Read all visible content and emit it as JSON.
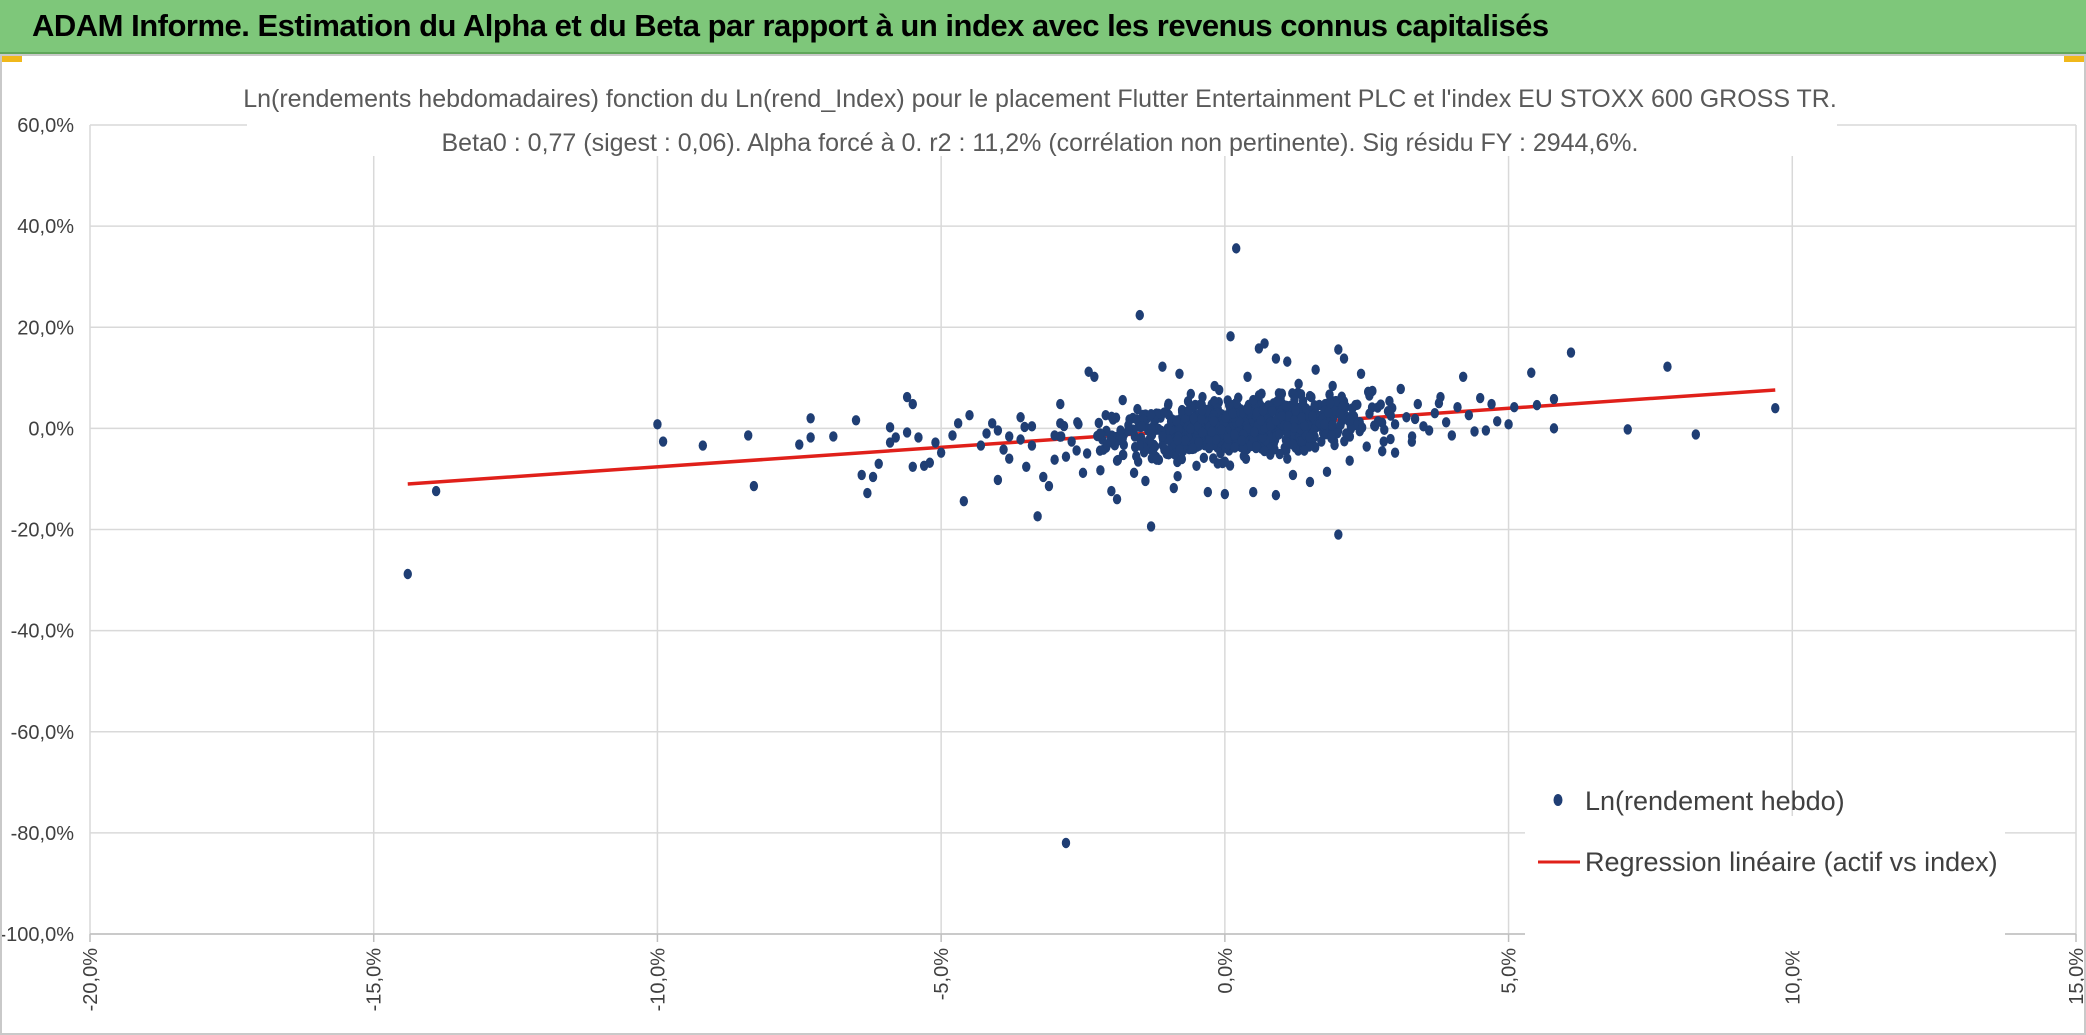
{
  "header": {
    "title": "ADAM Informe. Estimation du Alpha et du Beta par rapport à un index avec les revenus connus capitalisés",
    "background": "#7ec77a",
    "corner_color": "#f0b81b"
  },
  "chart_data": {
    "type": "scatter",
    "title": "Ln(rendements hebdomadaires) fonction du Ln(rend_Index) pour le placement Flutter Entertainment PLC et l'index EU STOXX 600 GROSS TR.",
    "subtitle": "Beta0 : 0,77 (sigest : 0,06). Alpha forcé à 0. r2 : 11,2% (corrélation non pertinente). Sig résidu FY : 2944,6%.",
    "xlabel": "",
    "ylabel": "",
    "xlim": [
      -20,
      15
    ],
    "ylim": [
      -100,
      60
    ],
    "x_ticks": [
      "-20,0%",
      "-15,0%",
      "-10,0%",
      "-5,0%",
      "0,0%",
      "5,0%",
      "10,0%",
      "15,0%"
    ],
    "y_ticks": [
      "60,0%",
      "40,0%",
      "20,0%",
      "0,0%",
      "-20,0%",
      "-40,0%",
      "-60,0%",
      "-80,0%",
      "-100,0%"
    ],
    "grid": true,
    "legend_position": "bottom-right",
    "series": [
      {
        "name": "Ln(rendement hebdo)",
        "kind": "scatter",
        "color": "#1f3e74",
        "points": [
          [
            -14.4,
            -28.8
          ],
          [
            -13.9,
            -12.4
          ],
          [
            -10.0,
            0.8
          ],
          [
            -9.9,
            -2.6
          ],
          [
            -9.2,
            -3.4
          ],
          [
            -8.4,
            -1.4
          ],
          [
            -8.3,
            -11.4
          ],
          [
            -7.5,
            -3.2
          ],
          [
            -7.3,
            2.0
          ],
          [
            -7.3,
            -1.8
          ],
          [
            -6.9,
            -1.6
          ],
          [
            -6.5,
            1.6
          ],
          [
            -6.4,
            -9.2
          ],
          [
            -6.3,
            -12.8
          ],
          [
            -6.2,
            -9.6
          ],
          [
            -6.1,
            -7.0
          ],
          [
            -5.9,
            0.2
          ],
          [
            -5.9,
            -2.8
          ],
          [
            -5.8,
            -1.8
          ],
          [
            -5.6,
            -0.8
          ],
          [
            -5.6,
            6.2
          ],
          [
            -5.5,
            4.8
          ],
          [
            -5.5,
            -7.6
          ],
          [
            -5.4,
            -1.8
          ],
          [
            -5.3,
            -7.4
          ],
          [
            -5.2,
            -6.8
          ],
          [
            -5.1,
            -2.8
          ],
          [
            -5.0,
            -4.8
          ],
          [
            -4.8,
            -1.4
          ],
          [
            -4.7,
            1.0
          ],
          [
            -4.6,
            -14.4
          ],
          [
            -4.5,
            2.6
          ],
          [
            -4.3,
            -3.4
          ],
          [
            -4.2,
            -1.0
          ],
          [
            -4.1,
            1.0
          ],
          [
            -4.0,
            -0.4
          ],
          [
            -4.0,
            -10.2
          ],
          [
            -3.9,
            -4.2
          ],
          [
            -3.8,
            -6.0
          ],
          [
            -3.8,
            -1.6
          ],
          [
            -3.6,
            -2.2
          ],
          [
            -3.6,
            2.2
          ],
          [
            -3.5,
            -7.6
          ],
          [
            -3.4,
            -3.4
          ],
          [
            -3.4,
            0.4
          ],
          [
            -3.3,
            -17.4
          ],
          [
            -3.2,
            -9.6
          ],
          [
            -3.1,
            -11.4
          ],
          [
            -3.0,
            -6.2
          ],
          [
            -3.0,
            -1.4
          ],
          [
            -2.9,
            4.8
          ],
          [
            -2.9,
            1.0
          ],
          [
            -2.8,
            -82.0
          ],
          [
            -2.8,
            -5.6
          ],
          [
            -2.7,
            -2.6
          ],
          [
            -2.6,
            1.2
          ],
          [
            -2.5,
            -8.8
          ],
          [
            -2.4,
            11.2
          ],
          [
            -2.3,
            10.2
          ],
          [
            -2.2,
            -4.4
          ],
          [
            -2.2,
            -1.0
          ],
          [
            -2.1,
            2.6
          ],
          [
            -2.0,
            -12.4
          ],
          [
            -1.9,
            -14.0
          ],
          [
            -1.9,
            -6.4
          ],
          [
            -1.8,
            5.6
          ],
          [
            -1.8,
            -2.0
          ],
          [
            -1.7,
            0.6
          ],
          [
            -1.6,
            -8.8
          ],
          [
            -1.5,
            -3.4
          ],
          [
            -1.5,
            22.4
          ],
          [
            -1.4,
            -10.4
          ],
          [
            -1.3,
            -19.4
          ],
          [
            -1.3,
            2.8
          ],
          [
            -1.2,
            -6.2
          ],
          [
            -1.1,
            -1.6
          ],
          [
            -1.1,
            12.2
          ],
          [
            -1.0,
            4.6
          ],
          [
            -0.9,
            -11.8
          ],
          [
            -0.8,
            10.8
          ],
          [
            -0.8,
            -4.2
          ],
          [
            -0.7,
            -2.4
          ],
          [
            -0.6,
            6.8
          ],
          [
            -0.5,
            -7.4
          ],
          [
            -0.4,
            3.6
          ],
          [
            -0.4,
            -0.8
          ],
          [
            -0.3,
            -12.6
          ],
          [
            -0.2,
            1.4
          ],
          [
            -0.1,
            7.6
          ],
          [
            0.0,
            -6.6
          ],
          [
            0.0,
            -13.0
          ],
          [
            0.1,
            18.2
          ],
          [
            0.2,
            35.6
          ],
          [
            0.3,
            -2.4
          ],
          [
            0.4,
            10.2
          ],
          [
            0.5,
            5.6
          ],
          [
            0.5,
            -12.6
          ],
          [
            0.6,
            15.8
          ],
          [
            0.7,
            16.8
          ],
          [
            0.8,
            -5.2
          ],
          [
            0.9,
            -13.2
          ],
          [
            0.9,
            13.8
          ],
          [
            1.0,
            2.4
          ],
          [
            1.1,
            -6.0
          ],
          [
            1.1,
            13.2
          ],
          [
            1.2,
            -9.2
          ],
          [
            1.3,
            8.8
          ],
          [
            1.4,
            -4.4
          ],
          [
            1.5,
            6.4
          ],
          [
            1.5,
            -10.6
          ],
          [
            1.6,
            11.6
          ],
          [
            1.7,
            -2.6
          ],
          [
            1.8,
            -8.6
          ],
          [
            1.9,
            8.4
          ],
          [
            2.0,
            15.6
          ],
          [
            2.0,
            -21.0
          ],
          [
            2.1,
            13.8
          ],
          [
            2.2,
            -6.4
          ],
          [
            2.3,
            4.6
          ],
          [
            2.4,
            10.8
          ],
          [
            2.5,
            -3.6
          ],
          [
            2.6,
            7.4
          ],
          [
            2.7,
            1.4
          ],
          [
            2.8,
            -2.6
          ],
          [
            2.9,
            5.4
          ],
          [
            3.0,
            0.8
          ],
          [
            3.0,
            -4.8
          ],
          [
            3.1,
            7.8
          ],
          [
            3.2,
            2.2
          ],
          [
            3.3,
            -1.6
          ],
          [
            3.4,
            4.8
          ],
          [
            3.5,
            0.4
          ],
          [
            3.6,
            -0.4
          ],
          [
            3.7,
            3.0
          ],
          [
            3.8,
            6.2
          ],
          [
            3.9,
            1.2
          ],
          [
            4.0,
            -1.4
          ],
          [
            4.1,
            4.2
          ],
          [
            4.2,
            10.2
          ],
          [
            4.3,
            2.6
          ],
          [
            4.4,
            -0.6
          ],
          [
            4.5,
            6.0
          ],
          [
            4.6,
            -0.4
          ],
          [
            4.7,
            4.8
          ],
          [
            4.8,
            1.4
          ],
          [
            5.0,
            0.8
          ],
          [
            5.1,
            4.2
          ],
          [
            5.4,
            11.0
          ],
          [
            5.5,
            4.6
          ],
          [
            5.8,
            5.8
          ],
          [
            5.8,
            0.0
          ],
          [
            6.1,
            15.0
          ],
          [
            7.1,
            -0.2
          ],
          [
            7.8,
            12.2
          ],
          [
            8.3,
            -1.2
          ],
          [
            9.7,
            4.0
          ]
        ]
      },
      {
        "name": "Regression linéaire (actif vs index)",
        "kind": "line",
        "color": "#e0201a",
        "points": [
          [
            -14.4,
            -11.0
          ],
          [
            9.7,
            7.6
          ]
        ]
      }
    ]
  }
}
